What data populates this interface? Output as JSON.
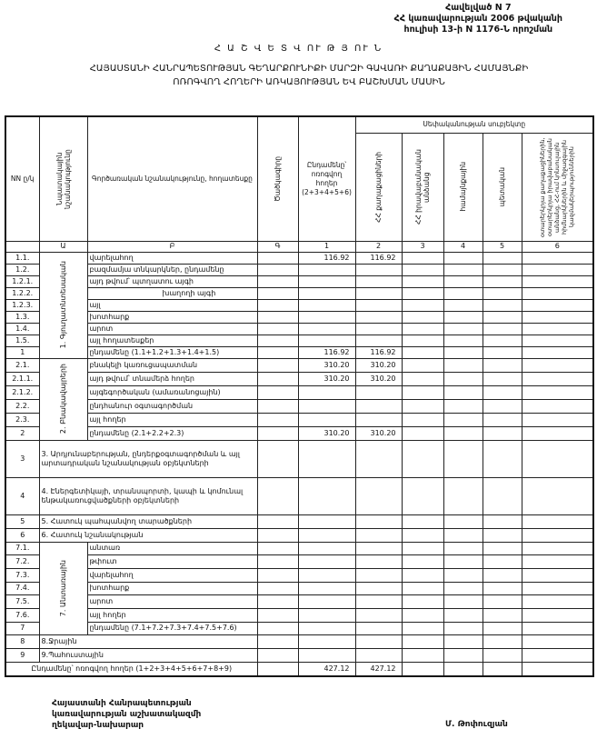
{
  "annex": {
    "line1": "Հավելված N 7",
    "line2": "ՀՀ կառավարության 2006 թվականի",
    "line3": "հուլիսի 13-ի N 1176-Ն որոշման"
  },
  "title": "Հ Ա Շ Վ Ե Տ Վ ՈՒ Թ Յ ՈՒ Ն",
  "subtitle": {
    "line1": "ՀԱՅԱՍՏԱՆԻ ՀԱՆՐԱՊԵՏՈՒԹՅԱՆ ԳԵՂԱՐՔՈՒՆԻՔԻ ՄԱՐԶԻ ԳԱՎԱՌԻ ՔԱՂԱՔԱՅԻՆ ՀԱՄԱՅՆՔԻ",
    "line2": "ՈՌՈԳՎՈՂ ՀՈՂԵՐԻ ԱՌԿԱՅՈՒԹՅԱՆ ԵՎ ԲԱՇԽՄԱՆ ՄԱՍԻՆ"
  },
  "header": {
    "nn": "NN ը/կ",
    "group": "Նպատակային նշանակությունը",
    "desc": "Գործառական նշանակությունը, հողատեսքը",
    "cad": "Ծածկագիրը",
    "total": "Ընդամենը՝ ոռոգվող հողեր (2+3+4+5+6)",
    "owner": "Սեփականության սուբյեկտը",
    "c2": "ՀՀ քաղաքացիների",
    "c3": "ՀՀ իրավաբանական անձանց",
    "c4": "համայնքային",
    "c5": "պետական",
    "c6": "օտարերկրյա քաղաքացիներին, օտարերկրյա իրավաբանական անձանց, ՀՀ-ում կոնսուլային հիմնարկներին և միջազգային կազմակերպություններին",
    "index": [
      "",
      "Ա",
      "Բ",
      "Գ",
      "1",
      "2",
      "3",
      "4",
      "5",
      "6"
    ]
  },
  "groups": {
    "g1": "1. Գյուղատնտեսական",
    "g2": "2. Բնակավայրերի",
    "g7": "7. Անտառային"
  },
  "rows": [
    {
      "nn": "1.1.",
      "g": "g1",
      "desc": "վարելահող",
      "total": "116.92",
      "c2": "116.92"
    },
    {
      "nn": "1.2.",
      "g": "g1",
      "desc": "բազմամյա տնկարկներ, ընդամենը"
    },
    {
      "nn": "1.2.1.",
      "g": "g1",
      "desc": "այդ թվում՝           պտղատու այգի"
    },
    {
      "nn": "1.2.2.",
      "g": "g1",
      "desc": "խաղողի այգի",
      "indent": true
    },
    {
      "nn": "1.2.3.",
      "g": "g1",
      "desc": "այլ"
    },
    {
      "nn": "1.3.",
      "g": "g1",
      "desc": "խոտհարք"
    },
    {
      "nn": "1.4.",
      "g": "g1",
      "desc": "արոտ"
    },
    {
      "nn": "1.5.",
      "g": "g1",
      "desc": "այլ հողատեսքեր"
    },
    {
      "nn": "1",
      "g": "g1",
      "desc": "ընդամենը (1.1+1.2+1.3+1.4+1.5)",
      "total": "116.92",
      "c2": "116.92"
    },
    {
      "nn": "2.1.",
      "g": "g2",
      "desc": "բնակելի կառուցապատման",
      "total": "310.20",
      "c2": "310.20"
    },
    {
      "nn": "2.1.1.",
      "g": "g2",
      "desc": "այդ թվում՝ տնամերձ հողեր",
      "total": "310.20",
      "c2": "310.20"
    },
    {
      "nn": "2.1.2.",
      "g": "g2",
      "desc": "այգեգործական (ամառանոցային)"
    },
    {
      "nn": "2.2.",
      "g": "g2",
      "desc": "ընդհանուր օգտագործման"
    },
    {
      "nn": "2.3.",
      "g": "g2",
      "desc": "այլ հողեր"
    },
    {
      "nn": "2",
      "g": "g2",
      "desc": "ընդամենը (2.1+2.2+2.3)",
      "total": "310.20",
      "c2": "310.20"
    },
    {
      "nn": "3",
      "desc": "3. Արդյունաբերության, ընդերքօգտագործման և այլ արտադրական նշանակության օբյեկտների",
      "tall": true
    },
    {
      "nn": "4",
      "desc": "4. Էներգետիկայի, տրանսպորտի, կապի և կոմունալ ենթակառուցվածքների օբյեկտների",
      "tall": true
    },
    {
      "nn": "5",
      "desc": "5. Հատուկ պահպանվող տարածքների"
    },
    {
      "nn": "6",
      "desc": "6. Հատուկ նշանակության"
    },
    {
      "nn": "7.1.",
      "g": "g7",
      "desc": "անտառ"
    },
    {
      "nn": "7.2.",
      "g": "g7",
      "desc": "թփուտ"
    },
    {
      "nn": "7.3.",
      "g": "g7",
      "desc": "վարելահող"
    },
    {
      "nn": "7.4.",
      "g": "g7",
      "desc": "խոտհարք"
    },
    {
      "nn": "7.5.",
      "g": "g7",
      "desc": "արոտ"
    },
    {
      "nn": "7.6.",
      "g": "g7",
      "desc": "այլ հողեր"
    },
    {
      "nn": "7",
      "g": "g7",
      "desc": "ընդամենը (7.1+7.2+7.3+7.4+7.5+7.6)"
    },
    {
      "nn": "8",
      "desc": "8.Ջրային"
    },
    {
      "nn": "9",
      "desc": "9.Պահուստային"
    }
  ],
  "grand_total": {
    "label": "Ընդամենը՝ ոռոգվող հողեր (1+2+3+4+5+6+7+8+9)",
    "total": "427.12",
    "c2": "427.12"
  },
  "signature": {
    "line1": "Հայաստանի Հանրապետության",
    "line2": "կառավարության աշխատակազմի",
    "line3": "ղեկավար-նախարար",
    "name": "Մ. Թոփուզյան"
  }
}
